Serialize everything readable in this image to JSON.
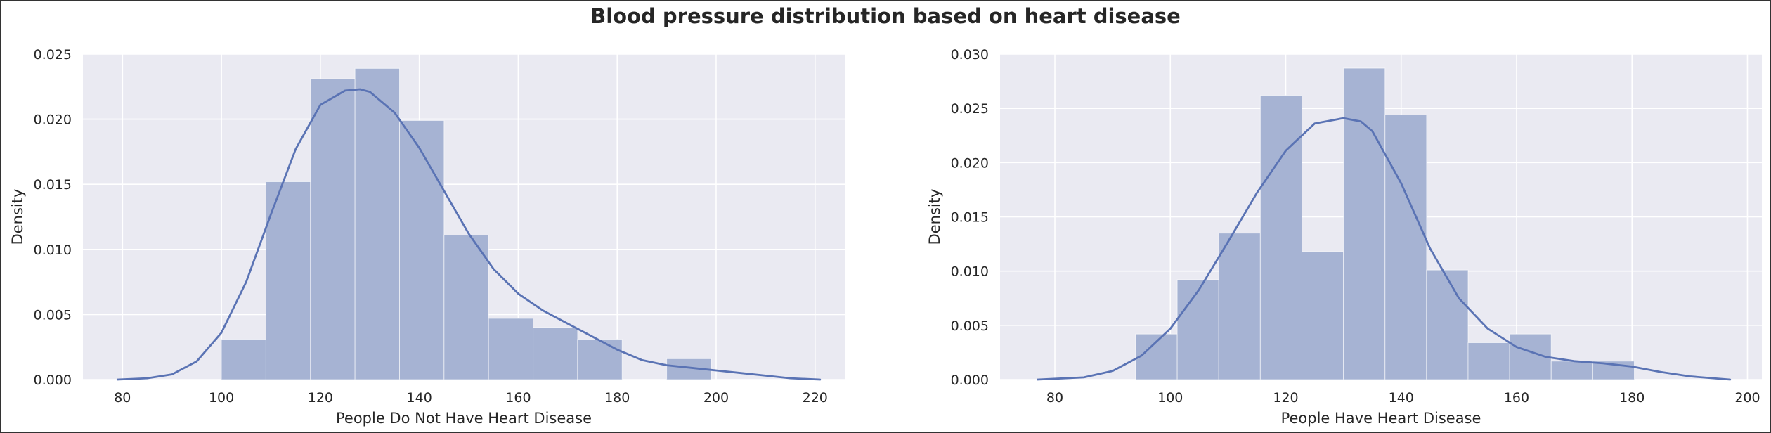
{
  "figure": {
    "title": "Blood pressure distribution based on heart disease",
    "colors": {
      "axes_bg": "#eaeaf2",
      "grid": "#ffffff",
      "bar": "#a6b3d3",
      "kde": "#5a73b4",
      "text": "#262626"
    }
  },
  "chart_data": [
    {
      "type": "histogram",
      "xlabel": "People Do Not Have Heart Disease",
      "ylabel": "Density",
      "xlim": [
        72,
        226
      ],
      "ylim": [
        0,
        0.025
      ],
      "xticks": [
        80,
        100,
        120,
        140,
        160,
        180,
        200,
        220
      ],
      "yticks": [
        0.0,
        0.005,
        0.01,
        0.015,
        0.02,
        0.025
      ],
      "ytick_labels": [
        "0.000",
        "0.005",
        "0.010",
        "0.015",
        "0.020",
        "0.025"
      ],
      "grid": true,
      "bins": [
        {
          "x0": 100,
          "x1": 109,
          "density": 0.0031
        },
        {
          "x0": 109,
          "x1": 118,
          "density": 0.0152
        },
        {
          "x0": 118,
          "x1": 127,
          "density": 0.0231
        },
        {
          "x0": 127,
          "x1": 136,
          "density": 0.0239
        },
        {
          "x0": 136,
          "x1": 145,
          "density": 0.0199
        },
        {
          "x0": 145,
          "x1": 154,
          "density": 0.0111
        },
        {
          "x0": 154,
          "x1": 163,
          "density": 0.0047
        },
        {
          "x0": 163,
          "x1": 172,
          "density": 0.004
        },
        {
          "x0": 172,
          "x1": 181,
          "density": 0.0031
        },
        {
          "x0": 181,
          "x1": 190,
          "density": 0.0
        },
        {
          "x0": 190,
          "x1": 199,
          "density": 0.0016
        }
      ],
      "kde": {
        "x": [
          79,
          85,
          90,
          95,
          100,
          105,
          110,
          115,
          120,
          125,
          128,
          130,
          135,
          140,
          145,
          150,
          155,
          160,
          165,
          170,
          175,
          180,
          185,
          190,
          195,
          200,
          205,
          210,
          215,
          221
        ],
        "y": [
          0.0,
          0.0001,
          0.0004,
          0.0014,
          0.0036,
          0.0075,
          0.0127,
          0.0177,
          0.0211,
          0.0222,
          0.0223,
          0.0221,
          0.0205,
          0.0178,
          0.0145,
          0.0112,
          0.0085,
          0.0066,
          0.0053,
          0.0043,
          0.0033,
          0.0023,
          0.0015,
          0.0011,
          0.0009,
          0.0007,
          0.0005,
          0.0003,
          0.0001,
          0.0
        ]
      }
    },
    {
      "type": "histogram",
      "xlabel": "People Have Heart Disease",
      "ylabel": "Density",
      "xlim": [
        70.5,
        202.5
      ],
      "ylim": [
        0,
        0.03
      ],
      "xticks": [
        80,
        100,
        120,
        140,
        160,
        180,
        200
      ],
      "yticks": [
        0.0,
        0.005,
        0.01,
        0.015,
        0.02,
        0.025,
        0.03
      ],
      "ytick_labels": [
        "0.000",
        "0.005",
        "0.010",
        "0.015",
        "0.020",
        "0.025",
        "0.030"
      ],
      "grid": true,
      "bins": [
        {
          "x0": 94,
          "x1": 101.2,
          "density": 0.0042
        },
        {
          "x0": 101.2,
          "x1": 108.4,
          "density": 0.0092
        },
        {
          "x0": 108.4,
          "x1": 115.6,
          "density": 0.0135
        },
        {
          "x0": 115.6,
          "x1": 122.8,
          "density": 0.0262
        },
        {
          "x0": 122.8,
          "x1": 130.0,
          "density": 0.0118
        },
        {
          "x0": 130.0,
          "x1": 137.2,
          "density": 0.0287
        },
        {
          "x0": 137.2,
          "x1": 144.4,
          "density": 0.0244
        },
        {
          "x0": 144.4,
          "x1": 151.6,
          "density": 0.0101
        },
        {
          "x0": 151.6,
          "x1": 158.8,
          "density": 0.0034
        },
        {
          "x0": 158.8,
          "x1": 166.0,
          "density": 0.0042
        },
        {
          "x0": 166.0,
          "x1": 173.2,
          "density": 0.0017
        },
        {
          "x0": 173.2,
          "x1": 180.4,
          "density": 0.0017
        }
      ],
      "kde": {
        "x": [
          77,
          85,
          90,
          95,
          100,
          105,
          110,
          115,
          120,
          125,
          130,
          133,
          135,
          140,
          145,
          150,
          155,
          160,
          165,
          170,
          175,
          180,
          185,
          190,
          197
        ],
        "y": [
          0.0,
          0.0002,
          0.0008,
          0.0022,
          0.0047,
          0.0083,
          0.0127,
          0.0172,
          0.0211,
          0.0236,
          0.0241,
          0.0238,
          0.0229,
          0.0181,
          0.0121,
          0.0075,
          0.0047,
          0.003,
          0.0021,
          0.0017,
          0.0015,
          0.0012,
          0.0007,
          0.0003,
          0.0
        ]
      }
    }
  ]
}
